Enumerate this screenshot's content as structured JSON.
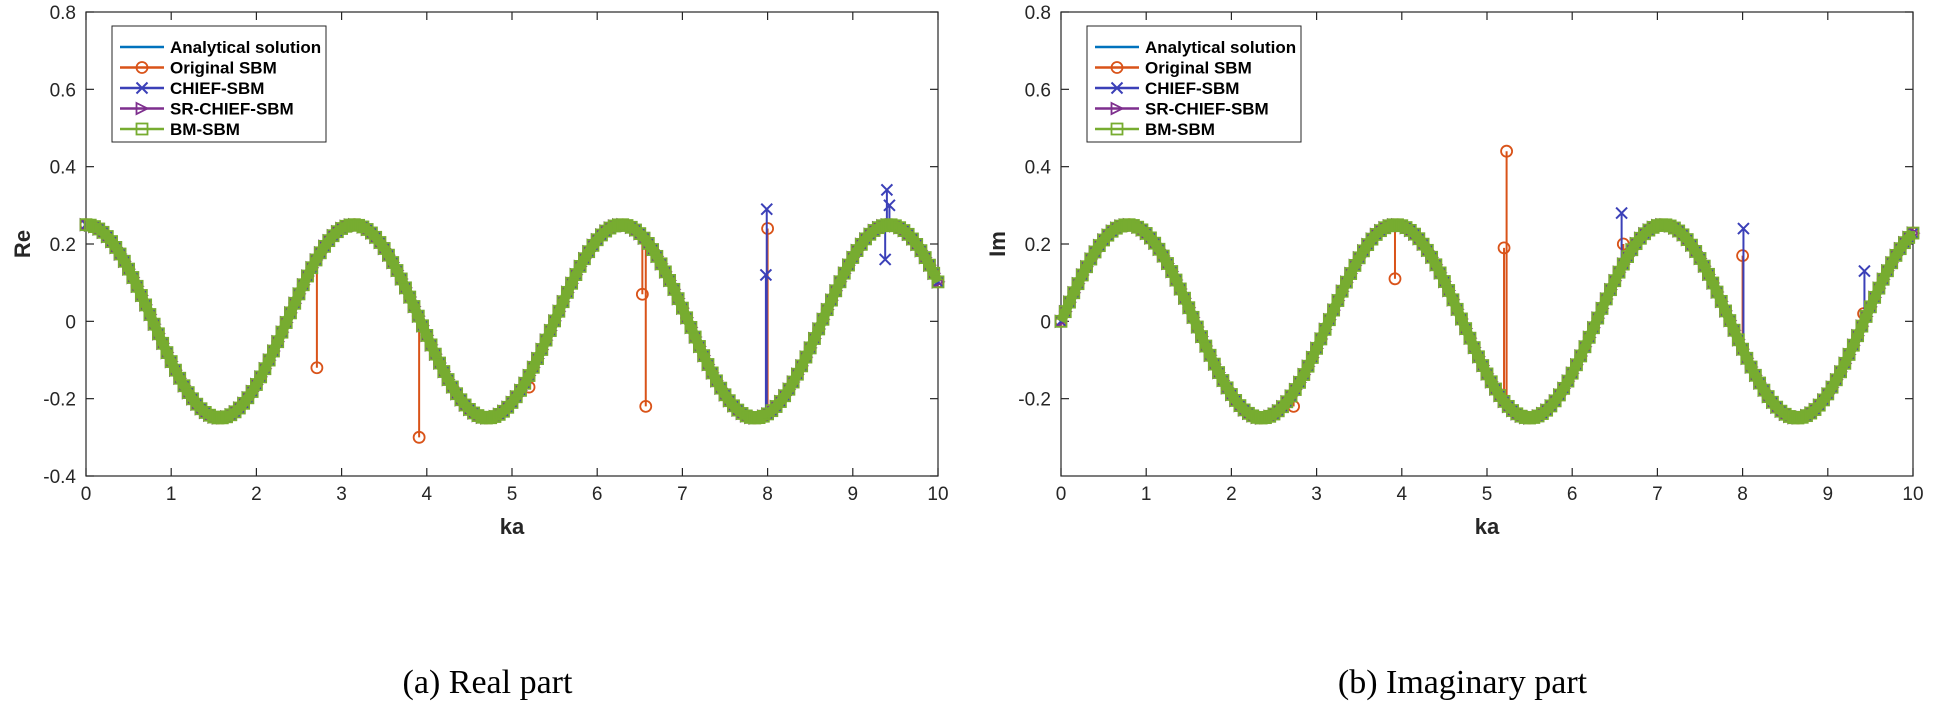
{
  "chart_data": [
    {
      "type": "line",
      "caption": "(a) Real part",
      "xlabel": "ka",
      "ylabel": "Re",
      "xlim": [
        0,
        10
      ],
      "ylim": [
        -0.4,
        0.8
      ],
      "xticks": [
        "0",
        "1",
        "2",
        "3",
        "4",
        "5",
        "6",
        "7",
        "8",
        "9",
        "10"
      ],
      "yticks": [
        "-0.4",
        "-0.2",
        "0",
        "0.2",
        "0.4",
        "0.6",
        "0.8"
      ],
      "grid": false,
      "legend_position": "top-left",
      "curve": {
        "amplitude": 0.25,
        "period": 3.14159,
        "phase": "cos",
        "x_end": 10
      },
      "series": [
        {
          "name": "Analytical solution",
          "color": "#0072BD",
          "marker": "none"
        },
        {
          "name": "Original SBM",
          "color": "#D95319",
          "marker": "circle",
          "outliers": [
            [
              2.71,
              -0.12
            ],
            [
              3.91,
              -0.3
            ],
            [
              5.2,
              -0.17
            ],
            [
              6.57,
              -0.22
            ],
            [
              6.53,
              0.07
            ],
            [
              8.0,
              0.24
            ]
          ]
        },
        {
          "name": "CHIEF-SBM",
          "color": "#3B40B8",
          "marker": "x",
          "outliers": [
            [
              7.99,
              0.29
            ],
            [
              7.98,
              0.12
            ],
            [
              9.4,
              0.34
            ],
            [
              9.43,
              0.3
            ],
            [
              9.38,
              0.16
            ]
          ]
        },
        {
          "name": "SR-CHIEF-SBM",
          "color": "#7E2F8E",
          "marker": "triangle-right",
          "outliers": []
        },
        {
          "name": "BM-SBM",
          "color": "#77AC30",
          "marker": "square",
          "outliers": []
        }
      ]
    },
    {
      "type": "line",
      "caption": "(b) Imaginary part",
      "xlabel": "ka",
      "ylabel": "Im",
      "xlim": [
        0,
        10
      ],
      "ylim": [
        -0.4,
        0.8
      ],
      "xticks": [
        "0",
        "1",
        "2",
        "3",
        "4",
        "5",
        "6",
        "7",
        "8",
        "9",
        "10"
      ],
      "yticks": [
        "-0.2",
        "0",
        "0.2",
        "0.4",
        "0.6",
        "0.8"
      ],
      "grid": false,
      "legend_position": "top-left",
      "curve": {
        "amplitude": 0.25,
        "period": 3.14159,
        "phase": "sin",
        "x_end": 10
      },
      "series": [
        {
          "name": "Analytical solution",
          "color": "#0072BD",
          "marker": "none"
        },
        {
          "name": "Original SBM",
          "color": "#D95319",
          "marker": "circle",
          "outliers": [
            [
              2.73,
              -0.22
            ],
            [
              3.92,
              0.11
            ],
            [
              5.23,
              0.44
            ],
            [
              5.2,
              0.19
            ],
            [
              6.6,
              0.2
            ],
            [
              8.0,
              0.17
            ],
            [
              9.42,
              0.02
            ]
          ]
        },
        {
          "name": "CHIEF-SBM",
          "color": "#3B40B8",
          "marker": "x",
          "outliers": [
            [
              6.58,
              0.28
            ],
            [
              8.01,
              0.24
            ],
            [
              9.43,
              0.13
            ]
          ]
        },
        {
          "name": "SR-CHIEF-SBM",
          "color": "#7E2F8E",
          "marker": "triangle-right",
          "outliers": []
        },
        {
          "name": "BM-SBM",
          "color": "#77AC30",
          "marker": "square",
          "outliers": []
        }
      ]
    }
  ]
}
